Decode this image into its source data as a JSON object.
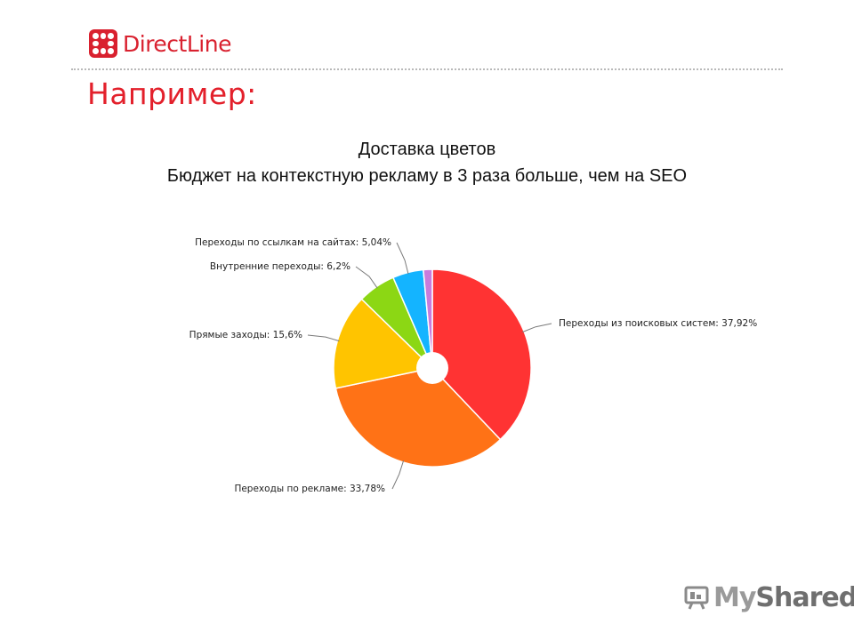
{
  "brand": {
    "logo_text": "DirectLine",
    "logo_color": "#d9212f"
  },
  "header": {
    "title": "Например:",
    "title_color": "#e3202b"
  },
  "chart_data": {
    "type": "pie",
    "donut": true,
    "title": "Доставка цветов",
    "subtitle": "Бюджет на контекстную рекламу в 3 раза больше, чем на SEO",
    "slices": [
      {
        "label": "Переходы из поисковых систем: 37,92%",
        "value": 37.92,
        "color": "#ff3333"
      },
      {
        "label": "Переходы по рекламе: 33,78%",
        "value": 33.78,
        "color": "#ff7216"
      },
      {
        "label": "Прямые заходы: 15,6%",
        "value": 15.6,
        "color": "#ffc400"
      },
      {
        "label": "Внутренние переходы: 6,2%",
        "value": 6.2,
        "color": "#8cd714"
      },
      {
        "label": "Переходы по ссылкам на сайтах: 5,04%",
        "value": 5.04,
        "color": "#14b4ff"
      },
      {
        "label": "",
        "value": 1.46,
        "color": "#c97bdc"
      }
    ],
    "legend": "none"
  },
  "watermark": {
    "text_my": "My",
    "text_shared": "Shared",
    "icon": "presentation-board-icon"
  }
}
